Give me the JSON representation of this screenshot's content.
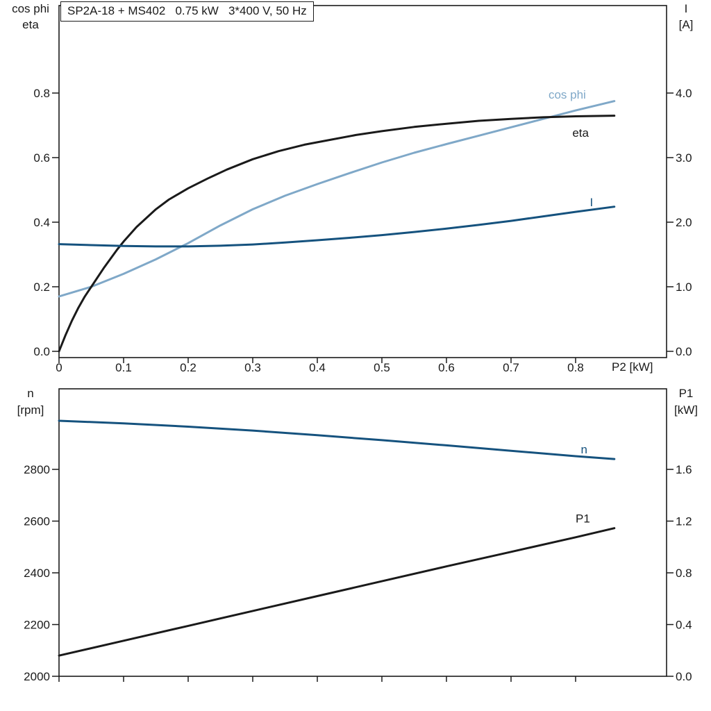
{
  "title": "SP2A-18 + MS402   0.75 kW   3*400 V, 50 Hz",
  "colors": {
    "black": "#1a1a1a",
    "dark_blue": "#15527e",
    "light_blue": "#7fa8c8"
  },
  "chart_data": [
    {
      "type": "line",
      "name": "upper-performance-plot",
      "left_axis": {
        "title_lines": [
          "cos phi",
          "eta"
        ],
        "tick_labels": [
          "0.0",
          "0.2",
          "0.4",
          "0.6",
          "0.8"
        ],
        "tick_values": [
          0,
          0.2,
          0.4,
          0.6,
          0.8
        ],
        "range": [
          0,
          1.07
        ]
      },
      "right_axis": {
        "title_lines": [
          "I",
          "[A]"
        ],
        "tick_labels": [
          "0.0",
          "1.0",
          "2.0",
          "3.0",
          "4.0"
        ],
        "tick_values": [
          0,
          1,
          2,
          3,
          4
        ],
        "range": [
          0,
          4.3
        ]
      },
      "x_axis": {
        "label": "P2 [kW]",
        "tick_labels": [
          "0",
          "0.1",
          "0.2",
          "0.3",
          "0.4",
          "0.5",
          "0.6",
          "0.7",
          "0.8"
        ],
        "tick_values": [
          0,
          0.1,
          0.2,
          0.3,
          0.4,
          0.5,
          0.6,
          0.7,
          0.8
        ],
        "range": [
          0,
          0.94
        ],
        "show_tick_labels": true
      },
      "series": [
        {
          "name": "cos phi",
          "color": "light_blue",
          "axis": "left",
          "label": {
            "text": "cos phi",
            "x": 0.758,
            "y": 0.783
          },
          "points": [
            [
              0,
              0.17
            ],
            [
              0.05,
              0.2
            ],
            [
              0.1,
              0.24
            ],
            [
              0.15,
              0.285
            ],
            [
              0.2,
              0.335
            ],
            [
              0.25,
              0.39
            ],
            [
              0.3,
              0.44
            ],
            [
              0.35,
              0.482
            ],
            [
              0.4,
              0.518
            ],
            [
              0.45,
              0.552
            ],
            [
              0.5,
              0.585
            ],
            [
              0.55,
              0.615
            ],
            [
              0.6,
              0.642
            ],
            [
              0.65,
              0.668
            ],
            [
              0.7,
              0.694
            ],
            [
              0.75,
              0.72
            ],
            [
              0.8,
              0.746
            ],
            [
              0.86,
              0.775
            ]
          ]
        },
        {
          "name": "eta",
          "color": "black",
          "axis": "left",
          "label": {
            "text": "eta",
            "x": 0.795,
            "y": 0.665
          },
          "points": [
            [
              0,
              0
            ],
            [
              0.01,
              0.05
            ],
            [
              0.02,
              0.095
            ],
            [
              0.03,
              0.135
            ],
            [
              0.04,
              0.17
            ],
            [
              0.05,
              0.2
            ],
            [
              0.07,
              0.26
            ],
            [
              0.09,
              0.315
            ],
            [
              0.1,
              0.34
            ],
            [
              0.12,
              0.385
            ],
            [
              0.15,
              0.44
            ],
            [
              0.17,
              0.47
            ],
            [
              0.2,
              0.505
            ],
            [
              0.23,
              0.535
            ],
            [
              0.26,
              0.563
            ],
            [
              0.3,
              0.595
            ],
            [
              0.34,
              0.62
            ],
            [
              0.38,
              0.64
            ],
            [
              0.42,
              0.655
            ],
            [
              0.46,
              0.67
            ],
            [
              0.5,
              0.682
            ],
            [
              0.55,
              0.695
            ],
            [
              0.6,
              0.705
            ],
            [
              0.65,
              0.714
            ],
            [
              0.7,
              0.72
            ],
            [
              0.75,
              0.725
            ],
            [
              0.8,
              0.728
            ],
            [
              0.86,
              0.73
            ]
          ]
        },
        {
          "name": "I",
          "color": "dark_blue",
          "axis": "right",
          "label": {
            "text": "I",
            "x": 0.822,
            "y": 2.25
          },
          "points": [
            [
              0,
              1.66
            ],
            [
              0.05,
              1.645
            ],
            [
              0.1,
              1.632
            ],
            [
              0.15,
              1.625
            ],
            [
              0.2,
              1.625
            ],
            [
              0.25,
              1.635
            ],
            [
              0.3,
              1.655
            ],
            [
              0.35,
              1.685
            ],
            [
              0.4,
              1.72
            ],
            [
              0.45,
              1.758
            ],
            [
              0.5,
              1.8
            ],
            [
              0.55,
              1.848
            ],
            [
              0.6,
              1.9
            ],
            [
              0.65,
              1.958
            ],
            [
              0.7,
              2.02
            ],
            [
              0.75,
              2.09
            ],
            [
              0.8,
              2.16
            ],
            [
              0.86,
              2.24
            ]
          ]
        }
      ]
    },
    {
      "type": "line",
      "name": "lower-performance-plot",
      "left_axis": {
        "title_lines": [
          "n",
          "[rpm]"
        ],
        "tick_labels": [
          "2000",
          "2200",
          "2400",
          "2600",
          "2800"
        ],
        "tick_values": [
          2000,
          2200,
          2400,
          2600,
          2800
        ],
        "range": [
          2000,
          3110
        ]
      },
      "right_axis": {
        "title_lines": [
          "P1",
          "[kW]"
        ],
        "tick_labels": [
          "0.0",
          "0.4",
          "0.8",
          "1.2",
          "1.6"
        ],
        "tick_values": [
          0,
          0.4,
          0.8,
          1.2,
          1.6
        ],
        "range": [
          0,
          2.22
        ]
      },
      "x_axis": {
        "label": "",
        "tick_labels": [],
        "tick_values": [
          0,
          0.1,
          0.2,
          0.3,
          0.4,
          0.5,
          0.6,
          0.7,
          0.8
        ],
        "range": [
          0,
          0.94
        ],
        "show_tick_labels": false
      },
      "series": [
        {
          "name": "n",
          "color": "dark_blue",
          "axis": "left",
          "label": {
            "text": "n",
            "x": 0.808,
            "y": 2862
          },
          "points": [
            [
              0,
              2988
            ],
            [
              0.1,
              2978
            ],
            [
              0.2,
              2965
            ],
            [
              0.3,
              2950
            ],
            [
              0.4,
              2932
            ],
            [
              0.5,
              2913
            ],
            [
              0.6,
              2893
            ],
            [
              0.7,
              2872
            ],
            [
              0.8,
              2851
            ],
            [
              0.86,
              2840
            ]
          ]
        },
        {
          "name": "P1",
          "color": "black",
          "axis": "right",
          "label": {
            "text": "P1",
            "x": 0.8,
            "y": 1.19
          },
          "points": [
            [
              0,
              0.16
            ],
            [
              0.1,
              0.275
            ],
            [
              0.2,
              0.39
            ],
            [
              0.3,
              0.505
            ],
            [
              0.4,
              0.62
            ],
            [
              0.5,
              0.735
            ],
            [
              0.6,
              0.85
            ],
            [
              0.7,
              0.962
            ],
            [
              0.8,
              1.075
            ],
            [
              0.86,
              1.145
            ]
          ]
        }
      ]
    }
  ]
}
